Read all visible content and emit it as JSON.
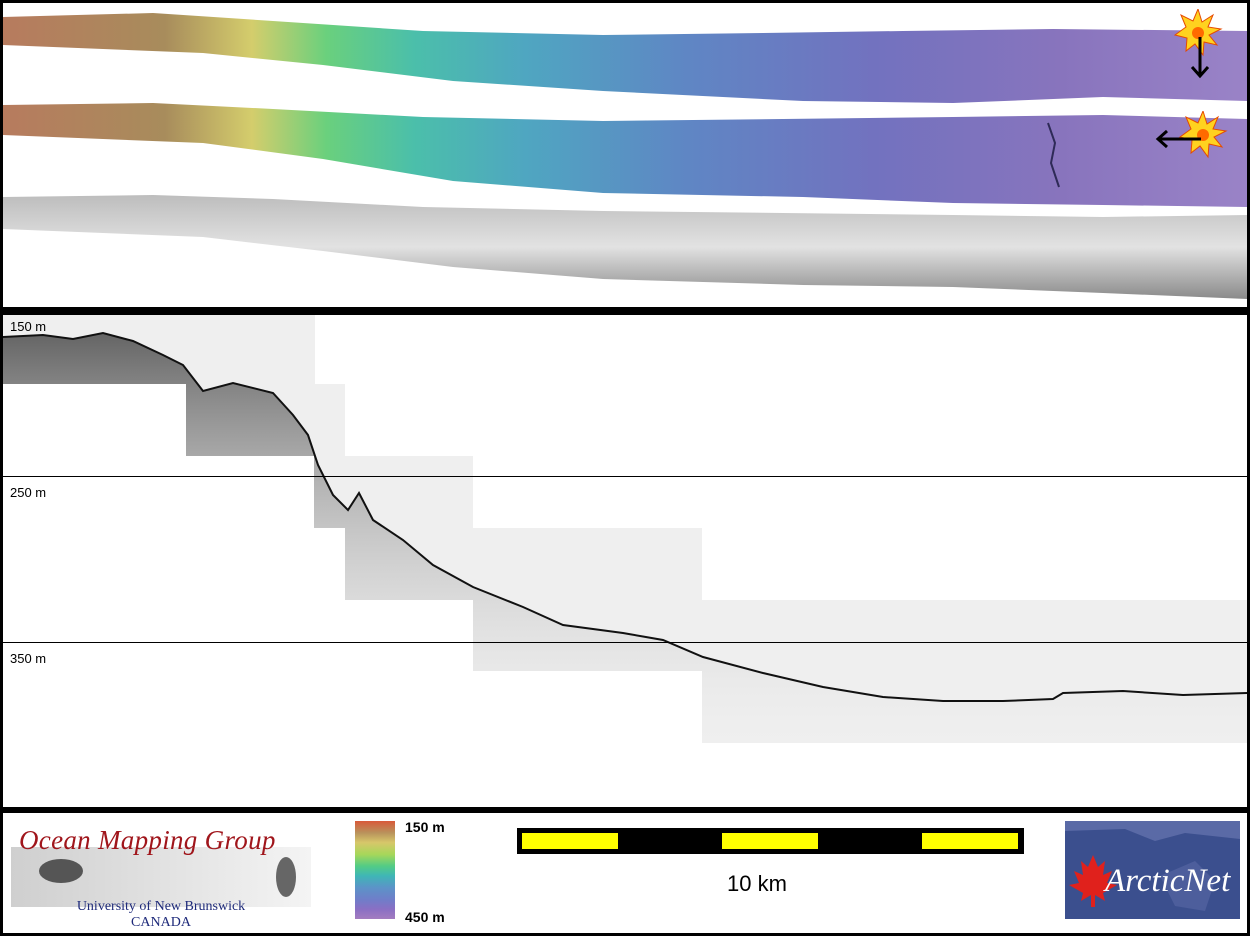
{
  "depth_axis": {
    "labels": [
      "150 m",
      "250 m",
      "350 m"
    ]
  },
  "legend": {
    "colorbar_top_label": "150 m",
    "colorbar_bottom_label": "450 m",
    "colorbar_colors": [
      "#d85a3a",
      "#d7c76a",
      "#53cc85",
      "#3fb6b6",
      "#6f7ec9",
      "#a47cc0"
    ]
  },
  "scale_bar": {
    "label": "10 km",
    "colors": {
      "bar": "#000000",
      "segment": "#ffff00"
    }
  },
  "logos": {
    "ocean_mapping_group": {
      "title": "Ocean Mapping Group",
      "line1": "University of New Brunswick",
      "line2": "CANADA"
    },
    "arcticnet": {
      "name": "ArcticNet"
    }
  },
  "sun_icons": [
    "sun-icon-illumination-north",
    "sun-icon-illumination-east"
  ],
  "arrow_icons": [
    "arrow-down-icon",
    "arrow-left-icon"
  ]
}
